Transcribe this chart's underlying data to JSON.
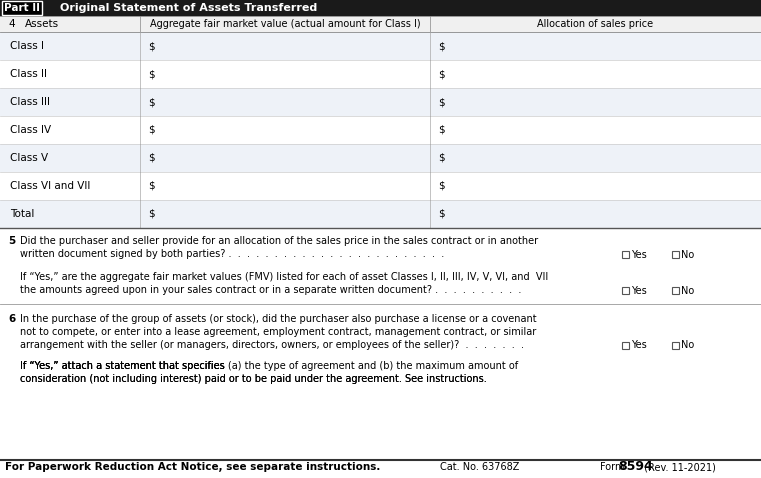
{
  "bg_color": "#ffffff",
  "form_bg": "#ffffff",
  "header_bg": "#1a1a1a",
  "col_assets": "Assets",
  "col_fmv": "Aggregate fair market value (actual amount for Class I)",
  "col_alloc": "Allocation of sales price",
  "rows": [
    "Class I",
    "Class II",
    "Class III",
    "Class IV",
    "Class V",
    "Class VI and VII",
    "Total"
  ],
  "dollar_sign": "$",
  "q5_line1": "Did the purchaser and seller provide for an allocation of the sales price in the sales contract or in another",
  "q5_line2": "written document signed by both parties? .  .  .  .  .  .  .  .  .  .  .  .  .  .  .  .  .  .  .  .  .  .  .  .",
  "q5b_line1": "If “Yes,” are the aggregate fair market values (FMV) listed for each of asset Classes I, II, III, IV, V, VI, and  VII",
  "q5b_line2": "the amounts agreed upon in your sales contract or in a separate written document? .  .  .  .  .  .  .  .  .  .",
  "q6_line1": "In the purchase of the group of assets (or stock), did the purchaser also purchase a license or a covenant",
  "q6_line2": "not to compete, or enter into a lease agreement, employment contract, management contract, or similar",
  "q6_line3": "arrangement with the seller (or managers, directors, owners, or employees of the seller)?  .  .  .  .  .  .  .",
  "q6b_line1": "If “Yes,” attach a statement that specifies (a) the type of agreement and (b) the maximum amount of",
  "q6b_line2": "consideration (not including interest) paid or to be paid under the agreement. See instructions.",
  "footer_left": "For Paperwork Reduction Act Notice, see separate instructions.",
  "footer_mid": "Cat. No. 63768Z",
  "line_color": "#aaaaaa",
  "text_color": "#000000",
  "row_bg_even": "#eef2f8",
  "row_bg_odd": "#ffffff",
  "col_header_bg": "#f0f0f0"
}
